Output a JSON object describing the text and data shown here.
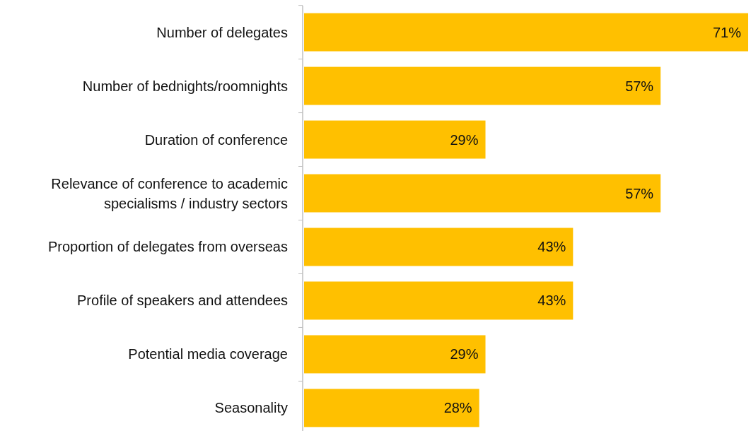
{
  "chart_data": {
    "type": "bar",
    "orientation": "horizontal",
    "categories": [
      "Number of delegates",
      "Number of bednights/roomnights",
      "Duration of conference",
      "Relevance of conference to academic specialisms / industry sectors",
      "Proportion of delegates from overseas",
      "Profile of speakers and attendees",
      "Potential media coverage",
      "Seasonality"
    ],
    "values": [
      71,
      57,
      29,
      57,
      43,
      43,
      29,
      28
    ],
    "value_labels": [
      "71%",
      "57%",
      "29%",
      "57%",
      "43%",
      "43%",
      "29%",
      "28%"
    ],
    "color": "#ffc000"
  }
}
